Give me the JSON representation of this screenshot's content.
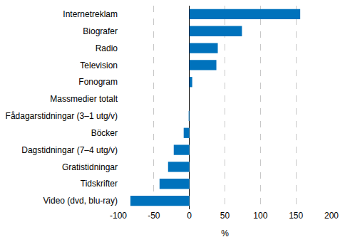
{
  "chart_data": {
    "type": "bar",
    "orientation": "horizontal",
    "categories": [
      "Internetreklam",
      "Biografer",
      "Radio",
      "Television",
      "Fonogram",
      "Massmedier totalt",
      "Fådagarstidningar (3–1 utg/v)",
      "Böcker",
      "Dagstidningar (7–4 utg/v)",
      "Gratistidningar",
      "Tidskrifter",
      "Video (dvd, blu-ray)"
    ],
    "values": [
      156,
      74,
      40,
      38,
      4,
      0,
      -1,
      -8,
      -22,
      -30,
      -42,
      -83
    ],
    "color": "#0072bc",
    "xlabel": "%",
    "xlim": [
      -100,
      200
    ],
    "xticks": [
      -100,
      -50,
      0,
      50,
      100,
      150,
      200
    ],
    "grid": true
  }
}
